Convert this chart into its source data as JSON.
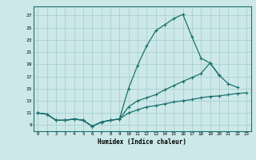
{
  "xlabel": "Humidex (Indice chaleur)",
  "bg_color": "#cce8e8",
  "grid_color": "#aad0d0",
  "line_color": "#1a7070",
  "xlim": [
    -0.5,
    23.5
  ],
  "ylim": [
    8.0,
    28.5
  ],
  "xticks": [
    0,
    1,
    2,
    3,
    4,
    5,
    6,
    7,
    8,
    9,
    10,
    11,
    12,
    13,
    14,
    15,
    16,
    17,
    18,
    19,
    20,
    21,
    22,
    23
  ],
  "yticks": [
    9,
    11,
    13,
    15,
    17,
    19,
    21,
    23,
    25,
    27
  ],
  "line1_x": [
    0,
    1,
    2,
    3,
    4,
    5,
    6,
    7,
    8,
    9,
    10,
    11,
    12,
    13,
    14,
    15,
    16,
    17,
    18,
    19,
    20,
    21,
    22
  ],
  "line1_y": [
    11,
    10.8,
    9.8,
    9.8,
    10,
    9.8,
    8.8,
    9.5,
    9.8,
    10,
    15,
    18.8,
    22,
    24.5,
    25.5,
    26.5,
    27.2,
    23.5,
    20,
    19.2,
    17.2,
    15.8,
    15.2
  ],
  "line2_x": [
    0,
    1,
    2,
    3,
    4,
    5,
    6,
    7,
    8,
    9,
    10,
    11,
    12,
    13,
    14,
    15,
    16,
    17,
    18,
    19,
    20
  ],
  "line2_y": [
    11,
    10.8,
    9.8,
    9.8,
    10,
    9.8,
    8.8,
    9.5,
    9.8,
    10,
    12,
    13,
    13.5,
    14,
    14.8,
    15.5,
    16.2,
    16.8,
    17.5,
    19.2,
    17.2
  ],
  "line3_x": [
    0,
    1,
    2,
    3,
    4,
    5,
    6,
    7,
    8,
    9,
    10,
    11,
    12,
    13,
    14,
    15,
    16,
    17,
    18,
    19,
    20,
    21,
    22,
    23
  ],
  "line3_y": [
    11,
    10.8,
    9.8,
    9.8,
    10,
    9.8,
    8.8,
    9.5,
    9.8,
    10,
    11,
    11.5,
    12,
    12.2,
    12.5,
    12.8,
    13.0,
    13.2,
    13.5,
    13.7,
    13.8,
    14.0,
    14.2,
    14.3
  ]
}
